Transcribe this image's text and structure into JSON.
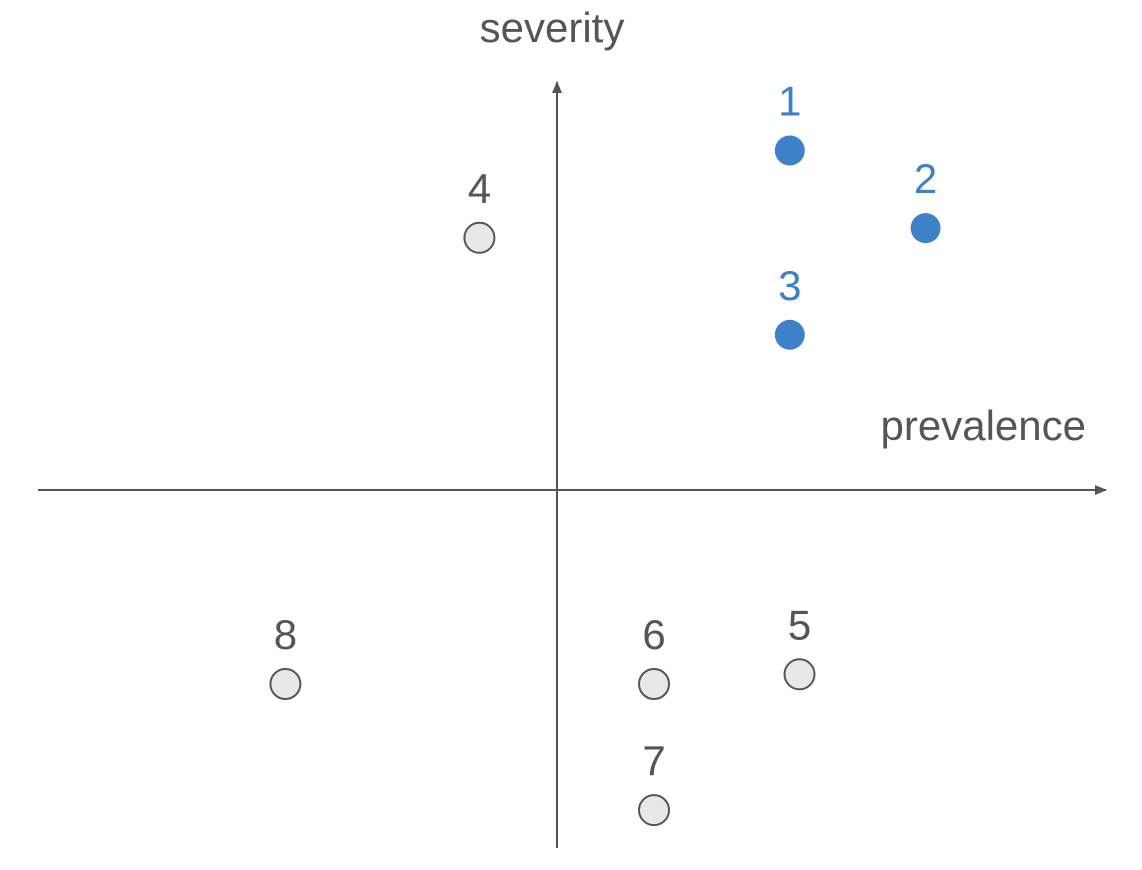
{
  "chart_data": {
    "type": "scatter",
    "xlabel": "prevalence",
    "ylabel": "severity",
    "xlim": [
      -5.4,
      5.6
    ],
    "ylim": [
      -3.75,
      4.05
    ],
    "grid": false,
    "legend": "none",
    "colors": {
      "axis": "#555555",
      "highlight": "#3d82c8",
      "muted_fill": "#e8e8e8",
      "muted_stroke": "#555555",
      "muted_text": "#555555"
    },
    "points": [
      {
        "label": "1",
        "x": 2.4,
        "y": 3.5,
        "group": "highlight"
      },
      {
        "label": "2",
        "x": 3.8,
        "y": 2.7,
        "group": "highlight"
      },
      {
        "label": "3",
        "x": 2.4,
        "y": 1.6,
        "group": "highlight"
      },
      {
        "label": "4",
        "x": -0.8,
        "y": 2.6,
        "group": "muted"
      },
      {
        "label": "5",
        "x": 2.5,
        "y": -1.9,
        "group": "muted"
      },
      {
        "label": "6",
        "x": 1.0,
        "y": -2.0,
        "group": "muted"
      },
      {
        "label": "7",
        "x": 1.0,
        "y": -3.3,
        "group": "muted"
      },
      {
        "label": "8",
        "x": -2.8,
        "y": -2.0,
        "group": "muted"
      }
    ]
  }
}
